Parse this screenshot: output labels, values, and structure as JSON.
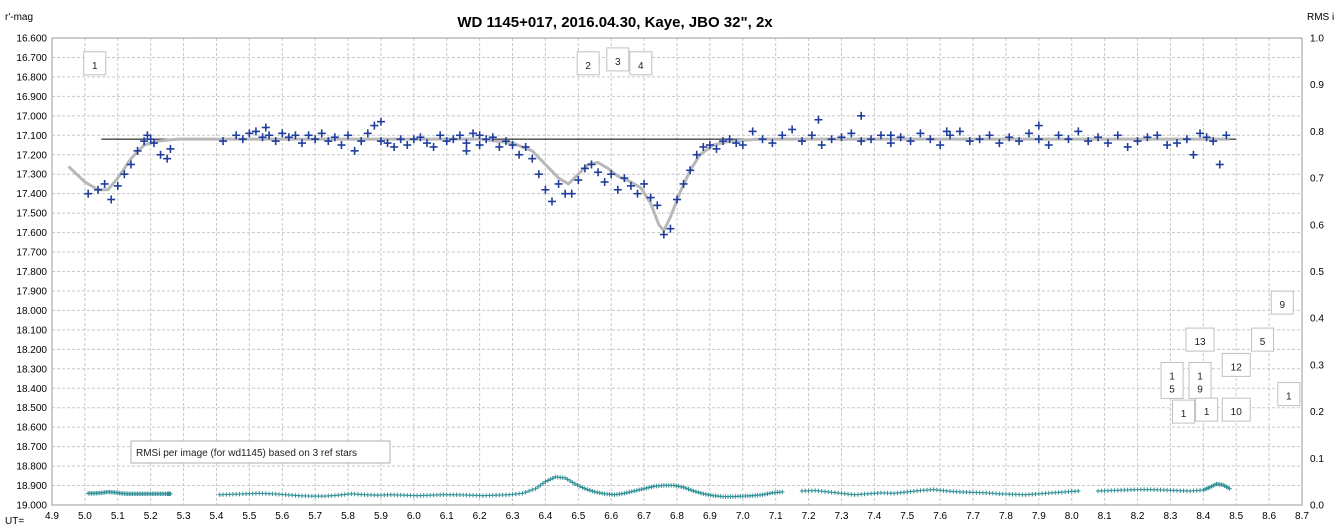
{
  "chart_data": {
    "type": "scatter",
    "title": "WD 1145+017,  2016.04.30,  Kaye, JBO 32\", 2x",
    "y_left_label": "r'-mag",
    "y_right_label": "RMS i",
    "x_label": "UT=",
    "xlim": [
      4.9,
      8.7
    ],
    "x_ticks": [
      "4.9",
      "5.0",
      "5.1",
      "5.2",
      "5.3",
      "5.4",
      "5.5",
      "5.6",
      "5.7",
      "5.8",
      "5.9",
      "6.0",
      "6.1",
      "6.2",
      "6.3",
      "6.4",
      "6.5",
      "6.6",
      "6.7",
      "6.8",
      "6.9",
      "7.0",
      "7.1",
      "7.2",
      "7.3",
      "7.4",
      "7.5",
      "7.6",
      "7.7",
      "7.8",
      "7.9",
      "8.0",
      "8.1",
      "8.2",
      "8.3",
      "8.4",
      "8.5",
      "8.6",
      "8.7"
    ],
    "ylim_left": [
      16.6,
      19.0
    ],
    "y_left_ticks": [
      "16.600",
      "16.700",
      "16.800",
      "16.900",
      "17.000",
      "17.100",
      "17.200",
      "17.300",
      "17.400",
      "17.500",
      "17.600",
      "17.700",
      "17.800",
      "17.900",
      "18.000",
      "18.100",
      "18.200",
      "18.300",
      "18.400",
      "18.500",
      "18.600",
      "18.700",
      "18.800",
      "18.900",
      "19.000"
    ],
    "ylim_right": [
      0.0,
      1.0
    ],
    "y_right_ticks": [
      "0.0",
      "0.1",
      "0.2",
      "0.3",
      "0.4",
      "0.5",
      "0.6",
      "0.7",
      "0.8",
      "0.9",
      "1.0"
    ],
    "reference_level": 17.12,
    "grid": true,
    "colors": {
      "mag_points": "#1f3d9c",
      "model_curve": "#b8b8b8",
      "rms_points": "#2f8f95",
      "ref_line": "#000000",
      "grid": "#c8c8c8"
    },
    "model_curve": [
      [
        4.95,
        17.26
      ],
      [
        5.0,
        17.34
      ],
      [
        5.04,
        17.38
      ],
      [
        5.07,
        17.38
      ],
      [
        5.1,
        17.32
      ],
      [
        5.14,
        17.22
      ],
      [
        5.18,
        17.15
      ],
      [
        5.22,
        17.13
      ],
      [
        5.28,
        17.12
      ],
      [
        5.88,
        17.12
      ],
      [
        6.2,
        17.12
      ],
      [
        6.3,
        17.14
      ],
      [
        6.36,
        17.18
      ],
      [
        6.4,
        17.25
      ],
      [
        6.44,
        17.32
      ],
      [
        6.47,
        17.35
      ],
      [
        6.5,
        17.3
      ],
      [
        6.53,
        17.25
      ],
      [
        6.56,
        17.24
      ],
      [
        6.59,
        17.27
      ],
      [
        6.62,
        17.31
      ],
      [
        6.66,
        17.34
      ],
      [
        6.69,
        17.37
      ],
      [
        6.72,
        17.45
      ],
      [
        6.745,
        17.56
      ],
      [
        6.76,
        17.59
      ],
      [
        6.78,
        17.52
      ],
      [
        6.81,
        17.39
      ],
      [
        6.84,
        17.28
      ],
      [
        6.87,
        17.2
      ],
      [
        6.91,
        17.15
      ],
      [
        6.96,
        17.13
      ],
      [
        7.05,
        17.12
      ],
      [
        8.48,
        17.12
      ]
    ],
    "mag_series": {
      "name": "",
      "x": [
        5.01,
        5.04,
        5.06,
        5.08,
        5.1,
        5.12,
        5.14,
        5.16,
        5.18,
        5.19,
        5.2,
        5.21,
        5.23,
        5.25,
        5.26,
        5.42,
        5.46,
        5.48,
        5.5,
        5.52,
        5.54,
        5.56,
        5.58,
        5.6,
        5.62,
        5.64,
        5.66,
        5.68,
        5.7,
        5.72,
        5.74,
        5.76,
        5.78,
        5.8,
        5.82,
        5.84,
        5.86,
        5.88,
        5.9,
        5.92,
        5.94,
        5.96,
        5.98,
        6.0,
        6.02,
        6.04,
        6.06,
        6.08,
        6.1,
        6.12,
        6.14,
        6.16,
        6.18,
        6.2,
        6.22,
        6.24,
        6.26,
        6.28,
        6.3,
        6.32,
        6.34,
        6.36,
        6.38,
        6.4,
        6.42,
        6.44,
        6.46,
        6.48,
        6.5,
        6.52,
        6.54,
        6.56,
        6.58,
        6.6,
        6.62,
        6.64,
        6.66,
        6.68,
        6.7,
        6.72,
        6.74,
        6.76,
        6.78,
        6.8,
        6.82,
        6.84,
        6.86,
        6.88,
        6.9,
        6.92,
        6.94,
        6.96,
        6.98,
        7.0,
        7.03,
        7.06,
        7.09,
        7.12,
        7.15,
        7.18,
        7.21,
        7.24,
        7.27,
        7.3,
        7.33,
        7.36,
        7.39,
        7.42,
        7.45,
        7.48,
        7.51,
        7.54,
        7.57,
        7.6,
        7.63,
        7.66,
        7.69,
        7.72,
        7.75,
        7.78,
        7.81,
        7.84,
        7.87,
        7.9,
        7.93,
        7.96,
        7.99,
        8.02,
        8.05,
        8.08,
        8.11,
        8.14,
        8.17,
        8.2,
        8.23,
        8.26,
        8.29,
        8.32,
        8.35,
        8.37,
        8.39,
        8.41,
        8.43,
        8.45,
        8.47
      ],
      "y": [
        17.4,
        17.38,
        17.35,
        17.43,
        17.36,
        17.3,
        17.25,
        17.18,
        17.13,
        17.1,
        17.12,
        17.14,
        17.2,
        17.22,
        17.17,
        17.13,
        17.1,
        17.12,
        17.09,
        17.08,
        17.11,
        17.1,
        17.13,
        17.09,
        17.11,
        17.1,
        17.14,
        17.1,
        17.12,
        17.09,
        17.13,
        17.11,
        17.15,
        17.1,
        17.18,
        17.13,
        17.09,
        17.05,
        17.13,
        17.14,
        17.16,
        17.12,
        17.15,
        17.12,
        17.11,
        17.14,
        17.16,
        17.1,
        17.13,
        17.12,
        17.1,
        17.14,
        17.09,
        17.15,
        17.12,
        17.11,
        17.16,
        17.13,
        17.15,
        17.2,
        17.16,
        17.22,
        17.3,
        17.38,
        17.44,
        17.35,
        17.4,
        17.4,
        17.33,
        17.27,
        17.25,
        17.29,
        17.34,
        17.3,
        17.38,
        17.32,
        17.36,
        17.4,
        17.35,
        17.42,
        17.46,
        17.61,
        17.58,
        17.43,
        17.35,
        17.28,
        17.2,
        17.16,
        17.15,
        17.17,
        17.13,
        17.12,
        17.14,
        17.15,
        17.08,
        17.12,
        17.14,
        17.1,
        17.07,
        17.13,
        17.1,
        17.15,
        17.12,
        17.11,
        17.09,
        17.13,
        17.12,
        17.1,
        17.14,
        17.11,
        17.13,
        17.09,
        17.12,
        17.15,
        17.1,
        17.08,
        17.13,
        17.12,
        17.1,
        17.14,
        17.11,
        17.13,
        17.09,
        17.12,
        17.15,
        17.1,
        17.12,
        17.08,
        17.13,
        17.11,
        17.14,
        17.1,
        17.16,
        17.13,
        17.11,
        17.1,
        17.15,
        17.14,
        17.12,
        17.2,
        17.09,
        17.11,
        17.13,
        17.25,
        17.1
      ],
      "outliers_x": [
        5.55,
        5.9,
        6.16,
        6.2,
        7.23,
        7.36,
        7.62,
        7.9,
        7.45
      ],
      "outliers_y": [
        17.06,
        17.03,
        17.18,
        17.1,
        17.02,
        17.0,
        17.08,
        17.05,
        17.1
      ]
    },
    "rms_series": {
      "name": "",
      "segments": [
        {
          "x": [
            5.01,
            5.03,
            5.05,
            5.07,
            5.09,
            5.11,
            5.13,
            5.15,
            5.17,
            5.19,
            5.21,
            5.23,
            5.25,
            5.26
          ],
          "y": [
            0.025,
            0.025,
            0.026,
            0.028,
            0.027,
            0.025,
            0.024,
            0.024,
            0.024,
            0.024,
            0.024,
            0.024,
            0.024,
            0.024
          ]
        },
        {
          "x": [
            5.41,
            5.45,
            5.49,
            5.53,
            5.57,
            5.61,
            5.65,
            5.69,
            5.73,
            5.77,
            5.81,
            5.85,
            5.89,
            5.93,
            5.97,
            6.01,
            6.05,
            6.09,
            6.13,
            6.17,
            6.21,
            6.25,
            6.29,
            6.33,
            6.37,
            6.4,
            6.43,
            6.46,
            6.49,
            6.52,
            6.55,
            6.58,
            6.61,
            6.64,
            6.67,
            6.7,
            6.73,
            6.76,
            6.79,
            6.82,
            6.85,
            6.88,
            6.91,
            6.94,
            6.97,
            7.0,
            7.03,
            7.06,
            7.09,
            7.12
          ],
          "y": [
            0.022,
            0.023,
            0.024,
            0.025,
            0.024,
            0.022,
            0.02,
            0.019,
            0.019,
            0.021,
            0.024,
            0.022,
            0.021,
            0.022,
            0.021,
            0.02,
            0.021,
            0.022,
            0.022,
            0.021,
            0.02,
            0.021,
            0.022,
            0.025,
            0.035,
            0.05,
            0.06,
            0.058,
            0.045,
            0.035,
            0.028,
            0.024,
            0.022,
            0.025,
            0.03,
            0.035,
            0.04,
            0.042,
            0.042,
            0.038,
            0.03,
            0.024,
            0.02,
            0.018,
            0.018,
            0.019,
            0.02,
            0.022,
            0.026,
            0.028
          ]
        },
        {
          "x": [
            7.18,
            7.22,
            7.26,
            7.3,
            7.34,
            7.38,
            7.42,
            7.46,
            7.5,
            7.54,
            7.58,
            7.62,
            7.66,
            7.7,
            7.74,
            7.78,
            7.82,
            7.86,
            7.9,
            7.94,
            7.98,
            8.02
          ],
          "y": [
            0.03,
            0.031,
            0.028,
            0.025,
            0.022,
            0.024,
            0.026,
            0.025,
            0.028,
            0.031,
            0.033,
            0.03,
            0.028,
            0.027,
            0.026,
            0.024,
            0.023,
            0.022,
            0.024,
            0.026,
            0.028,
            0.03
          ]
        },
        {
          "x": [
            8.08,
            8.12,
            8.16,
            8.2,
            8.24,
            8.28,
            8.32,
            8.36,
            8.4,
            8.42,
            8.44,
            8.46,
            8.48
          ],
          "y": [
            0.03,
            0.031,
            0.032,
            0.033,
            0.033,
            0.032,
            0.031,
            0.03,
            0.032,
            0.038,
            0.045,
            0.043,
            0.035
          ]
        }
      ]
    },
    "annotation": "RMSi per image (for wd1145) based on 3 ref stars",
    "labels": [
      {
        "text": "1",
        "x": 5.03,
        "y": 16.73
      },
      {
        "text": "2",
        "x": 6.53,
        "y": 16.73
      },
      {
        "text": "3",
        "x": 6.62,
        "y": 16.71
      },
      {
        "text": "4",
        "x": 6.69,
        "y": 16.73
      },
      {
        "text": "9",
        "x": 8.64,
        "y": 17.96
      },
      {
        "text": "13",
        "x": 8.39,
        "y": 18.15
      },
      {
        "text": "5",
        "x": 8.58,
        "y": 18.15
      },
      {
        "text": "12",
        "x": 8.5,
        "y": 18.28
      },
      {
        "text": "1\n5",
        "x": 8.305,
        "y": 18.36
      },
      {
        "text": "1\n9",
        "x": 8.39,
        "y": 18.36
      },
      {
        "text": "1",
        "x": 8.66,
        "y": 18.43
      },
      {
        "text": "1",
        "x": 8.34,
        "y": 18.52
      },
      {
        "text": "1",
        "x": 8.41,
        "y": 18.51
      },
      {
        "text": "10",
        "x": 8.5,
        "y": 18.51
      }
    ]
  }
}
